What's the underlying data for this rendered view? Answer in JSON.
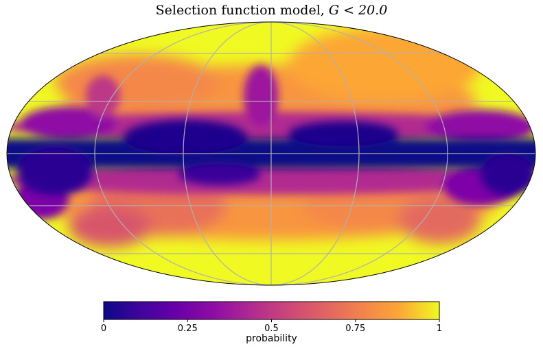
{
  "title_prefix": "Selection function model, ",
  "title_math": "G < 20.0",
  "map": {
    "projection": "mollweide",
    "graticule": true,
    "colormap": "plasma",
    "value_range": [
      0,
      1
    ],
    "description_colors": {
      "low": "#0d0887",
      "mid": "#cc4778",
      "high": "#f0f921"
    }
  },
  "colorbar": {
    "label": "probability",
    "ticks": [
      "0",
      "0.25",
      "0.5",
      "0.75",
      "1"
    ],
    "tick_values": [
      0,
      0.25,
      0.5,
      0.75,
      1
    ]
  }
}
